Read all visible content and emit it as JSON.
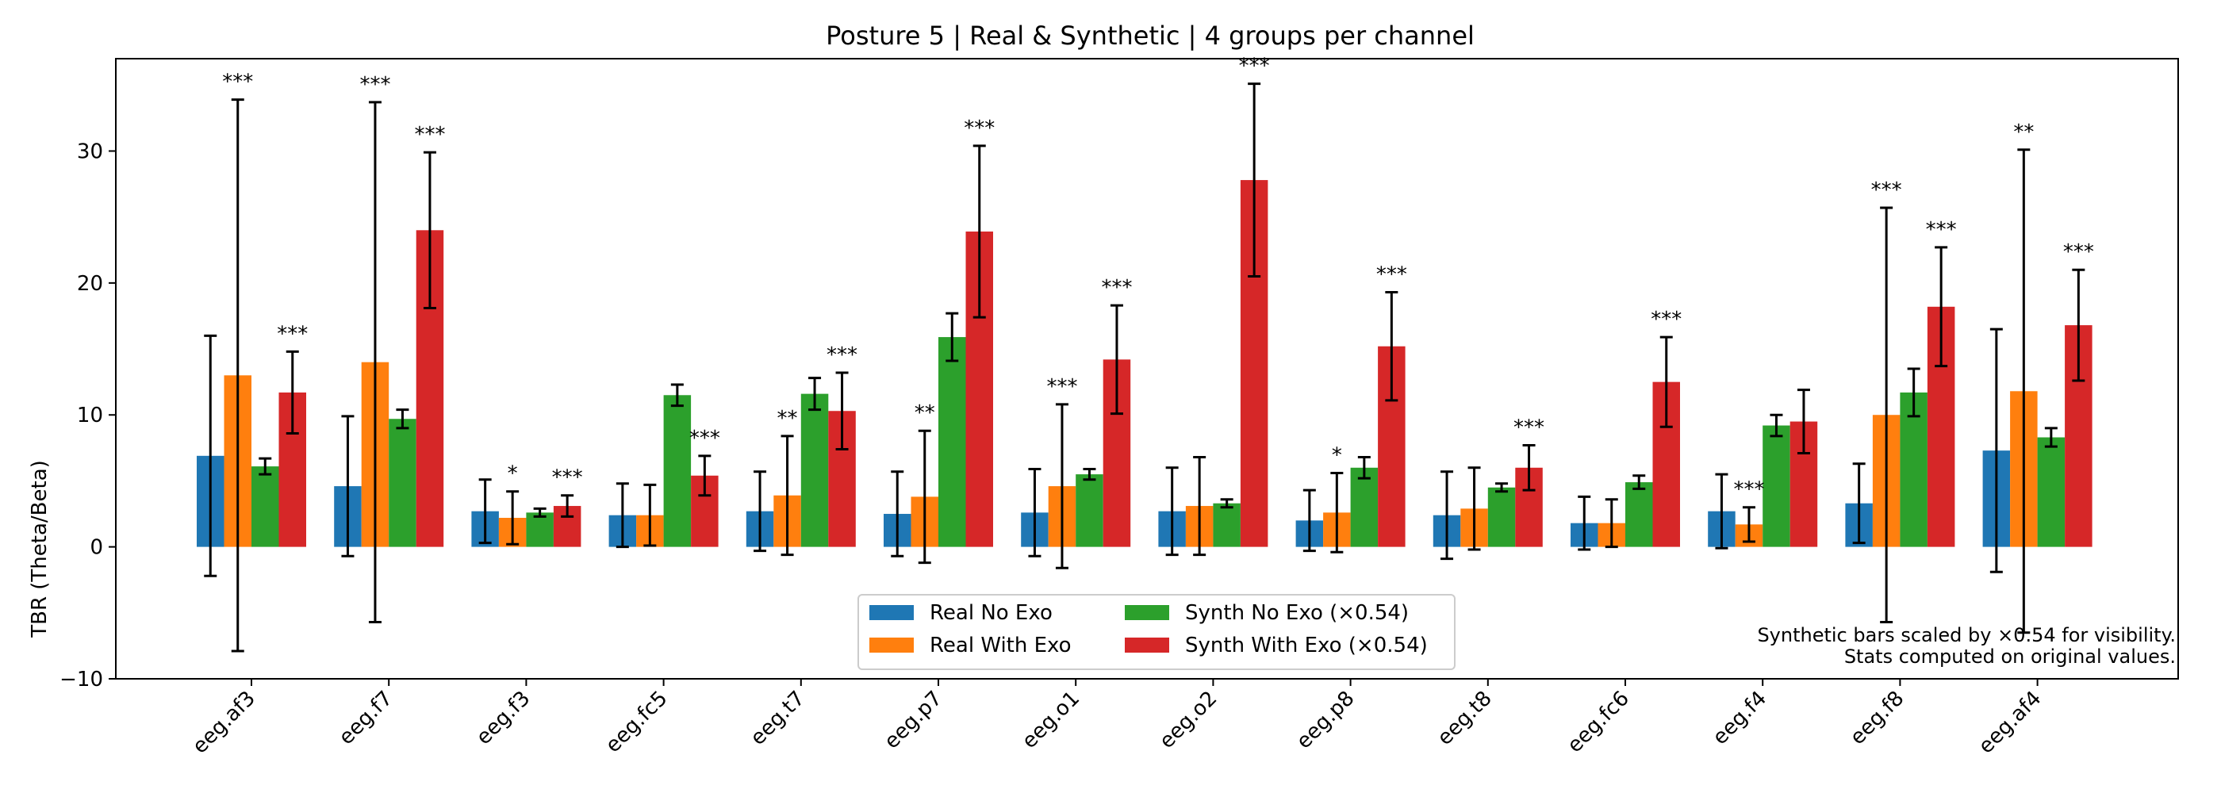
{
  "chart_data": {
    "type": "bar",
    "title": "Posture 5 | Real & Synthetic | 4 groups per channel",
    "xlabel": "",
    "ylabel": "TBR (Theta/Beta)",
    "ylim": [
      -10,
      37
    ],
    "yticks": [
      -10,
      0,
      10,
      20,
      30
    ],
    "grid": false,
    "legend_placement": "bottom-center",
    "categories": [
      "eeg.af3",
      "eeg.f7",
      "eeg.f3",
      "eeg.fc5",
      "eeg.t7",
      "eeg.p7",
      "eeg.o1",
      "eeg.o2",
      "eeg.p8",
      "eeg.t8",
      "eeg.fc6",
      "eeg.f4",
      "eeg.f8",
      "eeg.af4"
    ],
    "series": [
      {
        "name": "Real No Exo",
        "color": "#1f77b4",
        "values": [
          6.9,
          4.6,
          2.7,
          2.4,
          2.7,
          2.5,
          2.6,
          2.7,
          2.0,
          2.4,
          1.8,
          2.7,
          3.3,
          7.3
        ],
        "err": [
          9.1,
          5.3,
          2.4,
          2.4,
          3.0,
          3.2,
          3.3,
          3.3,
          2.3,
          3.3,
          2.0,
          2.8,
          3.0,
          9.2
        ]
      },
      {
        "name": "Real With Exo",
        "color": "#ff7f0e",
        "values": [
          13.0,
          14.0,
          2.2,
          2.4,
          3.9,
          3.8,
          4.6,
          3.1,
          2.6,
          2.9,
          1.8,
          1.7,
          10.0,
          11.8
        ],
        "err": [
          20.9,
          19.7,
          2.0,
          2.3,
          4.5,
          5.0,
          6.2,
          3.7,
          3.0,
          3.1,
          1.8,
          1.3,
          15.7,
          18.3
        ]
      },
      {
        "name": "Synth No Exo (×0.54)",
        "color": "#2ca02c",
        "values": [
          6.1,
          9.7,
          2.6,
          11.5,
          11.6,
          15.9,
          5.5,
          3.3,
          6.0,
          4.5,
          4.9,
          9.2,
          11.7,
          8.3
        ],
        "err": [
          0.6,
          0.7,
          0.3,
          0.8,
          1.2,
          1.8,
          0.4,
          0.3,
          0.8,
          0.3,
          0.5,
          0.8,
          1.8,
          0.7
        ]
      },
      {
        "name": "Synth With Exo (×0.54)",
        "color": "#d62728",
        "values": [
          11.7,
          24.0,
          3.1,
          5.4,
          10.3,
          23.9,
          14.2,
          27.8,
          15.2,
          6.0,
          12.5,
          9.5,
          18.2,
          16.8
        ],
        "err": [
          3.1,
          5.9,
          0.8,
          1.5,
          2.9,
          6.5,
          4.1,
          7.3,
          4.1,
          1.7,
          3.4,
          2.4,
          4.5,
          4.2
        ]
      }
    ],
    "significance": [
      {
        "category": 0,
        "series": 1,
        "label": "***"
      },
      {
        "category": 0,
        "series": 3,
        "label": "***"
      },
      {
        "category": 1,
        "series": 1,
        "label": "***"
      },
      {
        "category": 1,
        "series": 3,
        "label": "***"
      },
      {
        "category": 2,
        "series": 1,
        "label": "*"
      },
      {
        "category": 2,
        "series": 3,
        "label": "***"
      },
      {
        "category": 3,
        "series": 3,
        "label": "***"
      },
      {
        "category": 4,
        "series": 1,
        "label": "**"
      },
      {
        "category": 4,
        "series": 3,
        "label": "***"
      },
      {
        "category": 5,
        "series": 1,
        "label": "**"
      },
      {
        "category": 5,
        "series": 3,
        "label": "***"
      },
      {
        "category": 6,
        "series": 1,
        "label": "***"
      },
      {
        "category": 6,
        "series": 3,
        "label": "***"
      },
      {
        "category": 7,
        "series": 3,
        "label": "***"
      },
      {
        "category": 8,
        "series": 1,
        "label": "*"
      },
      {
        "category": 8,
        "series": 3,
        "label": "***"
      },
      {
        "category": 9,
        "series": 3,
        "label": "***"
      },
      {
        "category": 10,
        "series": 3,
        "label": "***"
      },
      {
        "category": 11,
        "series": 1,
        "label": "***"
      },
      {
        "category": 12,
        "series": 1,
        "label": "***"
      },
      {
        "category": 12,
        "series": 3,
        "label": "***"
      },
      {
        "category": 13,
        "series": 1,
        "label": "**"
      },
      {
        "category": 13,
        "series": 3,
        "label": "***"
      }
    ],
    "annotations": [
      "Synthetic bars scaled by ×0.54 for visibility.",
      "Stats computed on original values."
    ]
  }
}
